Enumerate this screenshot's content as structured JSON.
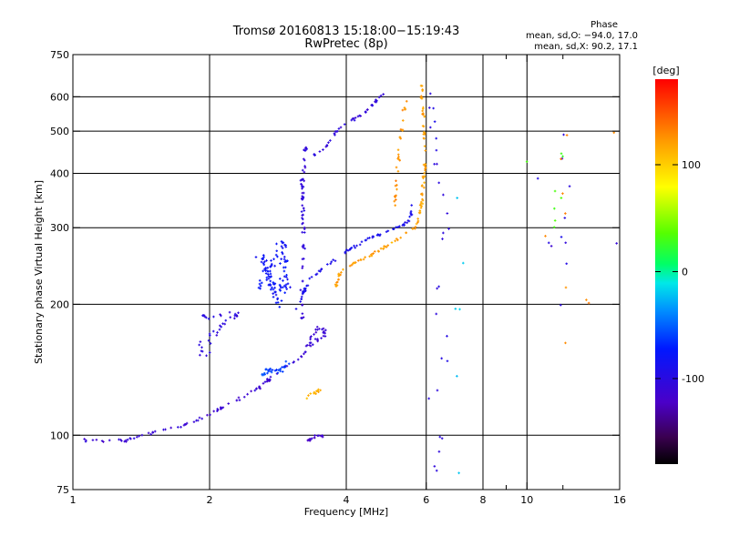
{
  "chart_data": {
    "type": "scatter",
    "title": "Tromsø 20160813 15:18:00−15:19:43",
    "subtitle": "RwPretec (8p)",
    "xlabel": "Frequency [MHz]",
    "ylabel": "Stationary phase Virtual Height [km]",
    "x_scale": "log",
    "y_scale": "log",
    "xlim": [
      1,
      16
    ],
    "ylim": [
      75,
      750
    ],
    "x_major_ticks": [
      1,
      2,
      4,
      6,
      8,
      10,
      16
    ],
    "x_minor_ticks": [
      9,
      12
    ],
    "x_major_gridlines": [
      2,
      4,
      6,
      8,
      10
    ],
    "y_ticks": [
      75,
      100,
      200,
      300,
      400,
      500,
      600,
      750
    ],
    "y_gridlines": [
      100,
      200,
      300,
      400,
      500,
      600
    ],
    "grid": true,
    "phase_info": {
      "heading": "Phase",
      "o_line": "mean, sd,O: −94.0, 17.0",
      "x_line": "mean, sd,X:  90.2, 17.1"
    },
    "colorbar": {
      "label": "[deg]",
      "range": [
        -180,
        180
      ],
      "ticks": [
        100,
        0,
        -100
      ],
      "colormap": "rainbow: black/purple (-180) → blue → cyan → green (0) → yellow → orange → red (180)"
    },
    "traces": [
      {
        "name": "",
        "phase": -110,
        "count": 90,
        "spread": 0.012,
        "points": [
          [
            1,
            98
          ],
          [
            1.15,
            97
          ],
          [
            1.3,
            97
          ],
          [
            1.45,
            101
          ],
          [
            1.6,
            103
          ],
          [
            1.75,
            105
          ],
          [
            1.88,
            108
          ],
          [
            2.0,
            112
          ],
          [
            2.2,
            118
          ],
          [
            2.4,
            123
          ],
          [
            2.6,
            130
          ],
          [
            2.8,
            138
          ],
          [
            3.0,
            145
          ],
          [
            3.15,
            150
          ],
          [
            3.3,
            158
          ]
        ]
      },
      {
        "name": "",
        "phase": -105,
        "count": 110,
        "spread": 0.012,
        "points": [
          [
            3.2,
            185
          ],
          [
            3.2,
            230
          ],
          [
            3.22,
            300
          ],
          [
            3.2,
            380
          ],
          [
            3.25,
            460
          ],
          [
            3.4,
            440
          ],
          [
            3.6,
            460
          ],
          [
            3.8,
            500
          ],
          [
            4.0,
            520
          ],
          [
            4.3,
            545
          ],
          [
            4.6,
            575
          ],
          [
            4.8,
            610
          ]
        ]
      },
      {
        "name": "",
        "phase": -90,
        "count": 80,
        "spread": 0.01,
        "points": [
          [
            3.1,
            195
          ],
          [
            3.3,
            225
          ],
          [
            3.5,
            240
          ],
          [
            3.8,
            255
          ],
          [
            4.1,
            268
          ],
          [
            4.4,
            280
          ],
          [
            4.8,
            292
          ],
          [
            5.2,
            300
          ],
          [
            5.5,
            310
          ],
          [
            5.6,
            335
          ]
        ]
      },
      {
        "name": "",
        "phase": 120,
        "count": 120,
        "spread": 0.01,
        "points": [
          [
            3.8,
            220
          ],
          [
            3.9,
            240
          ],
          [
            4.2,
            250
          ],
          [
            4.6,
            262
          ],
          [
            5.0,
            275
          ],
          [
            5.4,
            290
          ],
          [
            5.7,
            300
          ],
          [
            5.85,
            340
          ],
          [
            5.95,
            400
          ],
          [
            5.95,
            480
          ],
          [
            5.9,
            560
          ],
          [
            5.85,
            640
          ]
        ]
      },
      {
        "name": "",
        "phase": 125,
        "count": 30,
        "spread": 0.015,
        "points": [
          [
            5.1,
            330
          ],
          [
            5.2,
            420
          ],
          [
            5.3,
            520
          ],
          [
            5.4,
            590
          ]
        ]
      },
      {
        "name": "",
        "phase": -80,
        "count": 110,
        "spread": 0.04,
        "points": [
          [
            2.55,
            210
          ],
          [
            2.65,
            235
          ],
          [
            2.8,
            255
          ],
          [
            2.9,
            280
          ],
          [
            2.95,
            215
          ],
          [
            2.75,
            225
          ],
          [
            2.6,
            260
          ],
          [
            2.85,
            200
          ]
        ]
      },
      {
        "name": "",
        "phase": -100,
        "count": 40,
        "spread": 0.025,
        "points": [
          [
            1.9,
            190
          ],
          [
            2.0,
            185
          ],
          [
            2.1,
            188
          ],
          [
            2.3,
            190
          ],
          [
            1.9,
            160
          ],
          [
            1.95,
            150
          ],
          [
            2.05,
            165
          ]
        ]
      },
      {
        "name": "",
        "phase": -60,
        "count": 30,
        "spread": 0.02,
        "points": [
          [
            2.6,
            138
          ],
          [
            2.7,
            142
          ],
          [
            2.85,
            140
          ],
          [
            2.95,
            146
          ]
        ]
      },
      {
        "name": "",
        "phase": -110,
        "count": 30,
        "spread": 0.02,
        "points": [
          [
            3.3,
            165
          ],
          [
            3.45,
            175
          ],
          [
            3.6,
            172
          ],
          [
            3.3,
            160
          ]
        ]
      },
      {
        "name": "",
        "phase": 110,
        "count": 12,
        "spread": 0.02,
        "points": [
          [
            3.25,
            122
          ],
          [
            3.4,
            125
          ],
          [
            3.55,
            128
          ]
        ]
      },
      {
        "name": "",
        "phase": -115,
        "count": 18,
        "spread": 0.01,
        "points": [
          [
            3.3,
            97
          ],
          [
            3.45,
            100
          ],
          [
            3.6,
            99
          ]
        ]
      },
      {
        "name": "",
        "phase": -100,
        "count": 28,
        "spread": 0.04,
        "points": [
          [
            6.1,
            620
          ],
          [
            6.2,
            560
          ],
          [
            6.4,
            400
          ],
          [
            6.6,
            300
          ],
          [
            6.5,
            270
          ],
          [
            6.3,
            230
          ],
          [
            6.6,
            210
          ],
          [
            6.2,
            190
          ],
          [
            6.7,
            160
          ],
          [
            6.4,
            135
          ],
          [
            6.1,
            120
          ],
          [
            6.5,
            100
          ],
          [
            6.2,
            80
          ]
        ]
      },
      {
        "name": "",
        "phase": -20,
        "count": 6,
        "spread": 0.05,
        "points": [
          [
            7.2,
            610
          ],
          [
            7.1,
            250
          ],
          [
            7.0,
            140
          ],
          [
            7.2,
            80
          ]
        ]
      },
      {
        "name": "",
        "phase": -100,
        "count": 12,
        "spread": 0.04,
        "points": [
          [
            10.3,
            310
          ],
          [
            11.0,
            560
          ],
          [
            11.2,
            480
          ],
          [
            11.5,
            400
          ],
          [
            11.3,
            230
          ],
          [
            11.6,
            140
          ],
          [
            12.0,
            330
          ],
          [
            12.2,
            600
          ],
          [
            15.6,
            650
          ],
          [
            15.7,
            270
          ],
          [
            15.6,
            175
          ],
          [
            15.5,
            78
          ]
        ]
      },
      {
        "name": "",
        "phase": 130,
        "count": 10,
        "spread": 0.05,
        "points": [
          [
            9.0,
            500
          ],
          [
            11.3,
            560
          ],
          [
            11.2,
            210
          ],
          [
            12.3,
            540
          ],
          [
            12.0,
            110
          ],
          [
            15.8,
            400
          ],
          [
            15.8,
            560
          ]
        ]
      },
      {
        "name": "",
        "phase": 30,
        "count": 8,
        "spread": 0.05,
        "points": [
          [
            9.1,
            470
          ],
          [
            11.4,
            350
          ],
          [
            11.6,
            300
          ],
          [
            12.3,
            580
          ]
        ]
      }
    ]
  }
}
